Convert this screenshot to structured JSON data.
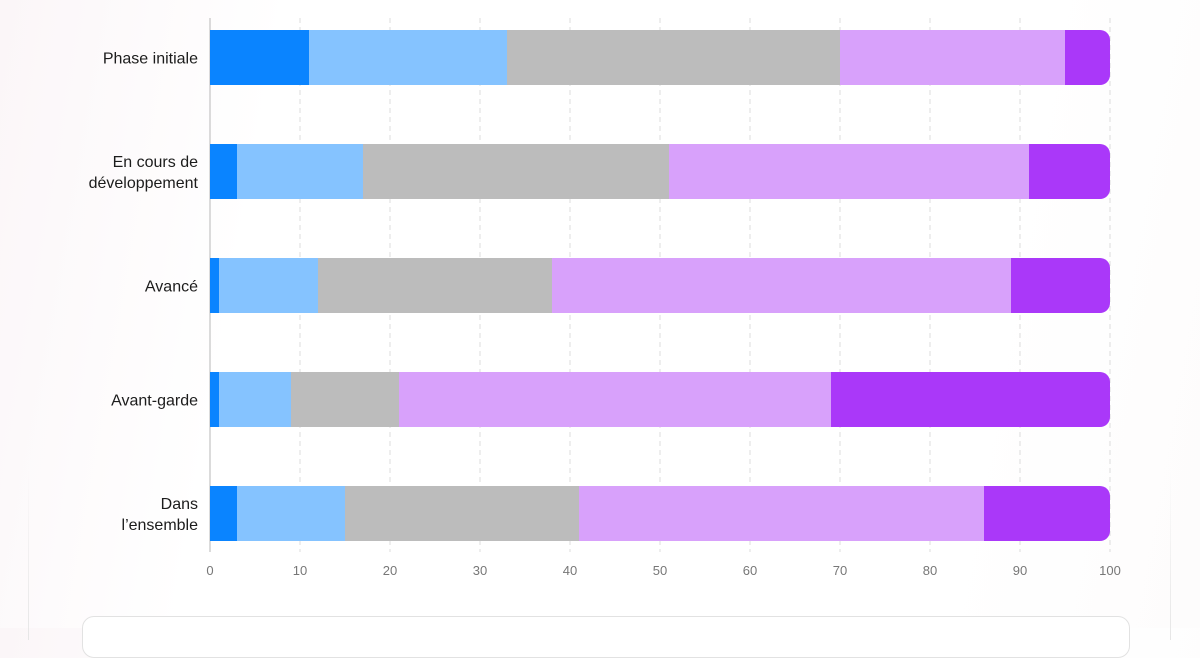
{
  "chart_data": {
    "type": "bar",
    "orientation": "horizontal",
    "stacked": true,
    "categories": [
      "Phase initiale",
      "En cours de développement",
      "Avancé",
      "Avant-garde",
      "Dans l’ensemble"
    ],
    "category_lines": [
      [
        "Phase initiale"
      ],
      [
        "En cours de",
        "développement"
      ],
      [
        "Avancé"
      ],
      [
        "Avant-garde"
      ],
      [
        "Dans",
        "l’ensemble"
      ]
    ],
    "series": [
      {
        "color": "#0a84ff",
        "values": [
          11,
          3,
          1,
          1,
          3
        ]
      },
      {
        "color": "#85c3ff",
        "values": [
          22,
          14,
          11,
          8,
          12
        ]
      },
      {
        "color": "#bcbcbc",
        "values": [
          37,
          34,
          26,
          12,
          26
        ]
      },
      {
        "color": "#d8a1fb",
        "values": [
          25,
          40,
          51,
          48,
          45
        ]
      },
      {
        "color": "#aa38f9",
        "values": [
          5,
          9,
          11,
          31,
          14
        ]
      }
    ],
    "xlim": [
      0,
      100
    ],
    "xticks": [
      "0",
      "10",
      "20",
      "30",
      "40",
      "50",
      "60",
      "70",
      "80",
      "90",
      "100"
    ],
    "grid": "vertical-dashed",
    "title": "",
    "xlabel": "",
    "ylabel": ""
  }
}
